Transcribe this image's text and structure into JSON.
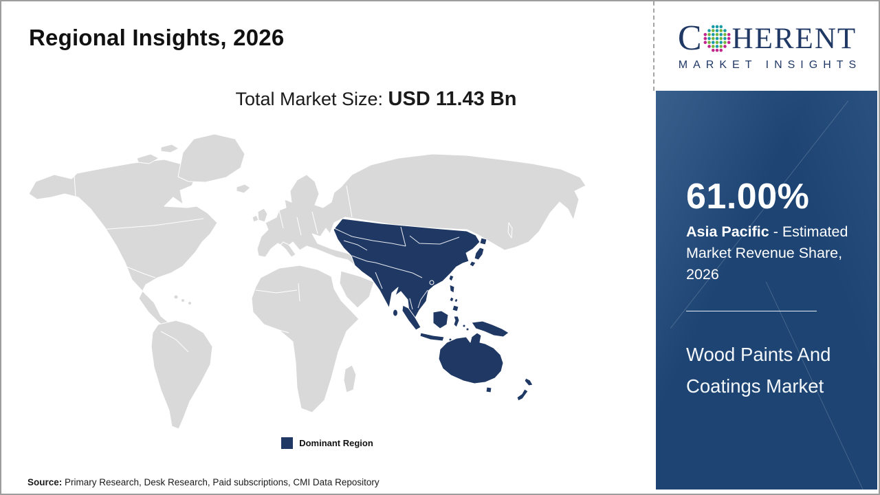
{
  "slide": {
    "title": "Regional Insights, 2026",
    "subtitle_prefix": "Total Market Size: ",
    "subtitle_value": "USD 11.43 Bn",
    "source_label": "Source:",
    "source_text": " Primary Research, Desk Research, Paid subscriptions, CMI Data Repository"
  },
  "map": {
    "legend_label": "Dominant Region",
    "dominant_region": "Asia Pacific",
    "land_color": "#d9d9d9",
    "highlight_color": "#1f3864"
  },
  "sidebar": {
    "stat_value": "61.00%",
    "stat_region": "Asia Pacific",
    "stat_desc_rest": " - Estimated Market Revenue Share, 2026",
    "market_name": "Wood Paints And Coatings Market",
    "bg_color": "#1d4473"
  },
  "logo": {
    "brand_first": "C",
    "brand_rest": "HERENT",
    "brand_sub": "MARKET INSIGHTS",
    "brand_color": "#1f3864",
    "dot_teal": "#189aa8",
    "dot_green": "#72b43c",
    "dot_magenta": "#c0268c"
  },
  "chart_data": {
    "type": "choropleth-map",
    "title": "Regional Insights, 2026",
    "total_market_size": "USD 11.43 Bn",
    "regions": [
      {
        "name": "Asia Pacific",
        "share_percent": 61.0,
        "status": "Dominant Region"
      }
    ],
    "year": 2026,
    "market": "Wood Paints And Coatings Market"
  }
}
